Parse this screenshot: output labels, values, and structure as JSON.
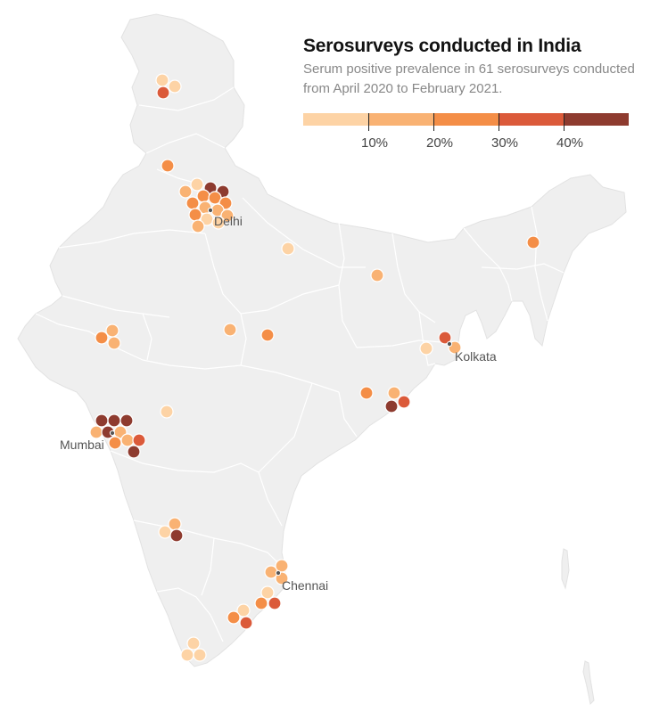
{
  "title": "Serosurveys conducted in India",
  "subtitle": "Serum positive prevalence in 61 serosurveys conducted from April 2020 to February 2021.",
  "legend": {
    "colors": [
      "#fdd3a5",
      "#f9b273",
      "#f48e47",
      "#db5a3a",
      "#8e3b2f"
    ],
    "labels": [
      "10%",
      "20%",
      "30%",
      "40%"
    ]
  },
  "cities": {
    "delhi": "Delhi",
    "kolkata": "Kolkata",
    "mumbai": "Mumbai",
    "chennai": "Chennai"
  },
  "map_style": {
    "land_fill": "#efefef",
    "border_color": "#ffffff",
    "marker_outline": "#ffffff"
  }
}
